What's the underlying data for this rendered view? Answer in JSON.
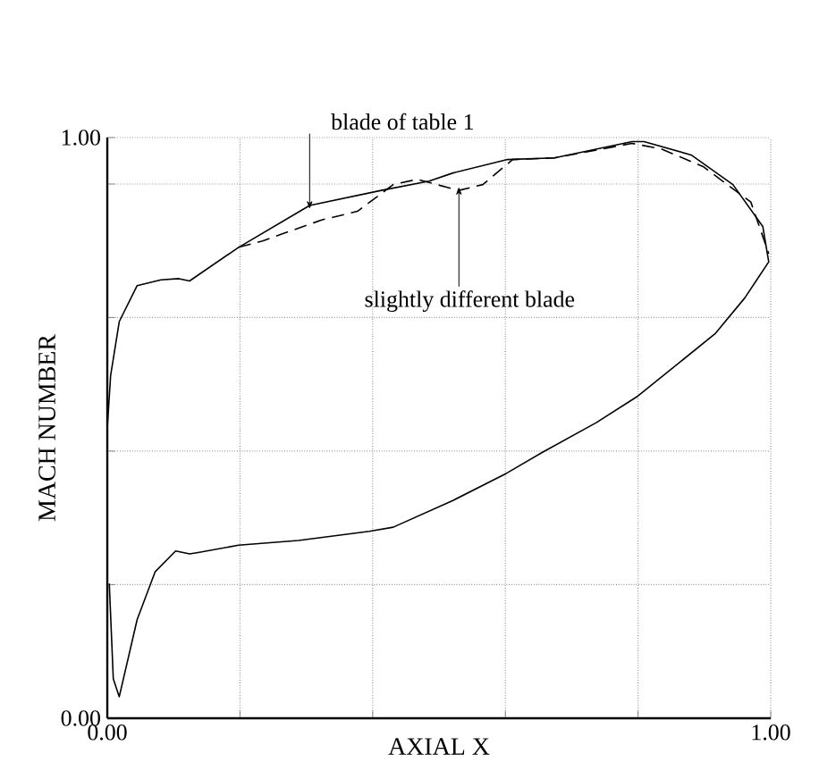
{
  "chart_data": {
    "type": "line",
    "xlabel": "AXIAL X",
    "ylabel": "MACH NUMBER",
    "xlim": [
      0,
      1
    ],
    "ylim": [
      0,
      1
    ],
    "xticks": [
      {
        "value": 0,
        "label": "0.00"
      },
      {
        "value": 0.2,
        "label": null
      },
      {
        "value": 0.4,
        "label": null
      },
      {
        "value": 0.6,
        "label": null
      },
      {
        "value": 0.8,
        "label": null
      },
      {
        "value": 1,
        "label": "1.00"
      }
    ],
    "yticks": [
      {
        "value": 0,
        "label": "0.00"
      },
      {
        "value": 0.23,
        "label": null
      },
      {
        "value": 0.46,
        "label": null
      },
      {
        "value": 0.69,
        "label": null
      },
      {
        "value": 0.92,
        "label": null
      },
      {
        "value": 1,
        "label": "1.00"
      }
    ],
    "grid": true,
    "marker": "none",
    "series": [
      {
        "color": "#000000",
        "line_style": "solid",
        "x": [
          0.0,
          0.005,
          0.018,
          0.045,
          0.081,
          0.108,
          0.124,
          0.198,
          0.305,
          0.413,
          0.485,
          0.521,
          0.602,
          0.674,
          0.791,
          0.809,
          0.88,
          0.943,
          0.988,
          0.997,
          0.979,
          0.961,
          0.916,
          0.8,
          0.737,
          0.656,
          0.602,
          0.521,
          0.431,
          0.395,
          0.288,
          0.198,
          0.135,
          0.124,
          0.103,
          0.072,
          0.045,
          0.018,
          0.009,
          0.003
        ],
        "values": [
          0.5,
          0.59,
          0.683,
          0.745,
          0.755,
          0.757,
          0.753,
          0.811,
          0.883,
          0.909,
          0.925,
          0.939,
          0.962,
          0.965,
          0.993,
          0.993,
          0.97,
          0.919,
          0.847,
          0.786,
          0.755,
          0.724,
          0.662,
          0.555,
          0.509,
          0.458,
          0.422,
          0.375,
          0.329,
          0.322,
          0.306,
          0.298,
          0.285,
          0.283,
          0.288,
          0.252,
          0.17,
          0.037,
          0.068,
          0.232
        ]
      },
      {
        "color": "#000000",
        "line_style": "dashed",
        "x": [
          0.198,
          0.234,
          0.323,
          0.377,
          0.431,
          0.467,
          0.53,
          0.566,
          0.611,
          0.674,
          0.791,
          0.836,
          0.898,
          0.97,
          0.997
        ],
        "values": [
          0.811,
          0.822,
          0.858,
          0.873,
          0.919,
          0.928,
          0.909,
          0.919,
          0.962,
          0.965,
          0.99,
          0.98,
          0.95,
          0.889,
          0.8
        ]
      }
    ],
    "annotations": [
      {
        "text": "blade of table 1",
        "x": 0.305,
        "y": 0.883
      },
      {
        "text": "slightly different blade",
        "x": 0.53,
        "y": 0.909
      }
    ]
  }
}
